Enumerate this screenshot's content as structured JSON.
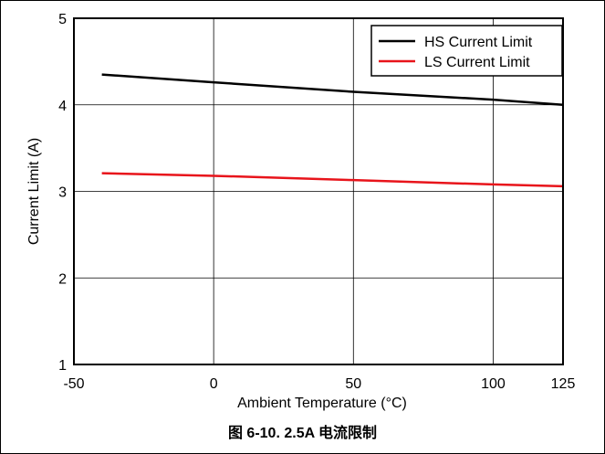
{
  "chart_data": {
    "type": "line",
    "xlabel": "Ambient Temperature (°C)",
    "ylabel": "Current Limit (A)",
    "xlim": [
      -50,
      125
    ],
    "ylim": [
      1,
      5
    ],
    "x_ticks": [
      -50,
      0,
      50,
      100,
      125
    ],
    "y_ticks": [
      1,
      2,
      3,
      4,
      5
    ],
    "grid": true,
    "legend_position": "top-right",
    "series": [
      {
        "name": "HS Current Limit",
        "color": "#000000",
        "x": [
          -40,
          0,
          50,
          100,
          125
        ],
        "y": [
          4.35,
          4.26,
          4.15,
          4.06,
          4.0
        ]
      },
      {
        "name": "LS Current Limit",
        "color": "#e8141b",
        "x": [
          -40,
          0,
          50,
          100,
          125
        ],
        "y": [
          3.21,
          3.18,
          3.13,
          3.08,
          3.06
        ]
      }
    ],
    "caption": "图 6-10. 2.5A 电流限制"
  }
}
